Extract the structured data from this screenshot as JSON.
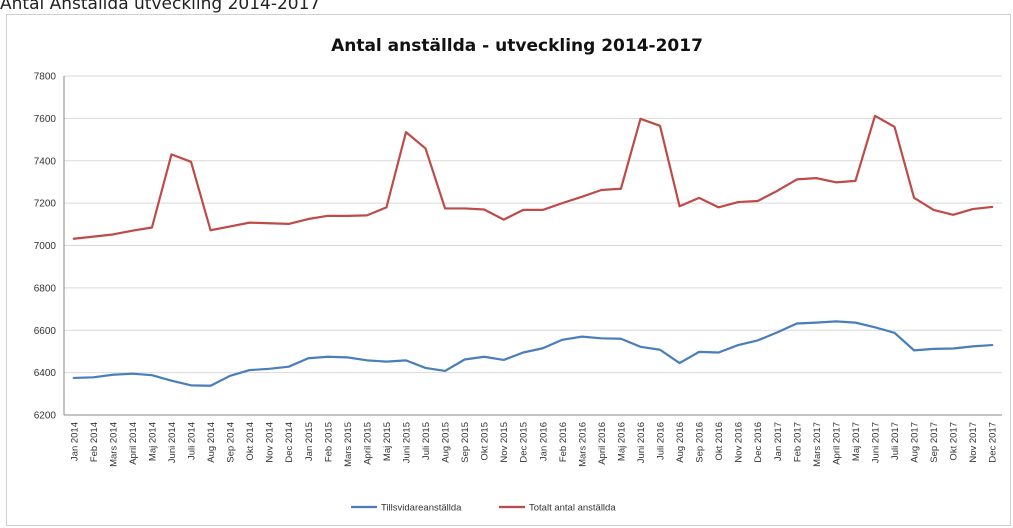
{
  "page_caption": "Antal Anställda utveckling 2014-2017",
  "chart_data": {
    "type": "line",
    "title": "Antal anställda - utveckling 2014-2017",
    "xlabel": "",
    "ylabel": "",
    "ylim": [
      6200,
      7800
    ],
    "yticks": [
      6200,
      6400,
      6600,
      6800,
      7000,
      7200,
      7400,
      7600,
      7800
    ],
    "grid": true,
    "legend_position": "bottom",
    "categories": [
      "Jan 2014",
      "Feb 2014",
      "Mars 2014",
      "April 2014",
      "Maj 2014",
      "Juni 2014",
      "Juli 2014",
      "Aug 2014",
      "Sep 2014",
      "Okt 2014",
      "Nov 2014",
      "Dec 2014",
      "Jan 2015",
      "Feb 2015",
      "Mars 2015",
      "April 2015",
      "Maj 2015",
      "Juni 2015",
      "Juli 2015",
      "Aug 2015",
      "Sep 2015",
      "Okt 2015",
      "Nov 2015",
      "Dec 2015",
      "Jan 2016",
      "Feb 2016",
      "Mars 2016",
      "April 2016",
      "Maj 2016",
      "Juni 2016",
      "Juli 2016",
      "Aug 2016",
      "Sep 2016",
      "Okt 2016",
      "Nov 2016",
      "Dec 2016",
      "Jan 2017",
      "Feb 2017",
      "Mars 2017",
      "April 2017",
      "Maj 2017",
      "Juni 2017",
      "Juli 2017",
      "Aug 2017",
      "Sep 2017",
      "Okt 2017",
      "Nov 2017",
      "Dec 2017"
    ],
    "series": [
      {
        "name": "Tillsvidareanställda",
        "color": "#4a7ebb",
        "values": [
          6375,
          6378,
          6390,
          6395,
          6388,
          6362,
          6340,
          6338,
          6385,
          6412,
          6418,
          6428,
          6468,
          6475,
          6472,
          6458,
          6452,
          6458,
          6422,
          6408,
          6462,
          6475,
          6460,
          6495,
          6515,
          6555,
          6570,
          6562,
          6560,
          6522,
          6508,
          6445,
          6498,
          6495,
          6530,
          6552,
          6590,
          6632,
          6636,
          6642,
          6636,
          6614,
          6588,
          6505,
          6512,
          6514,
          6524,
          6530
        ]
      },
      {
        "name": "Totalt antal anställda",
        "color": "#be4b48",
        "values": [
          7032,
          7042,
          7052,
          7070,
          7085,
          7430,
          7395,
          7072,
          7090,
          7108,
          7105,
          7102,
          7125,
          7140,
          7140,
          7142,
          7180,
          7535,
          7458,
          7175,
          7175,
          7170,
          7122,
          7168,
          7168,
          7200,
          7230,
          7262,
          7268,
          7598,
          7565,
          7185,
          7225,
          7180,
          7205,
          7210,
          7258,
          7312,
          7318,
          7298,
          7305,
          7612,
          7560,
          7225,
          7168,
          7145,
          7172,
          7182
        ]
      }
    ]
  }
}
